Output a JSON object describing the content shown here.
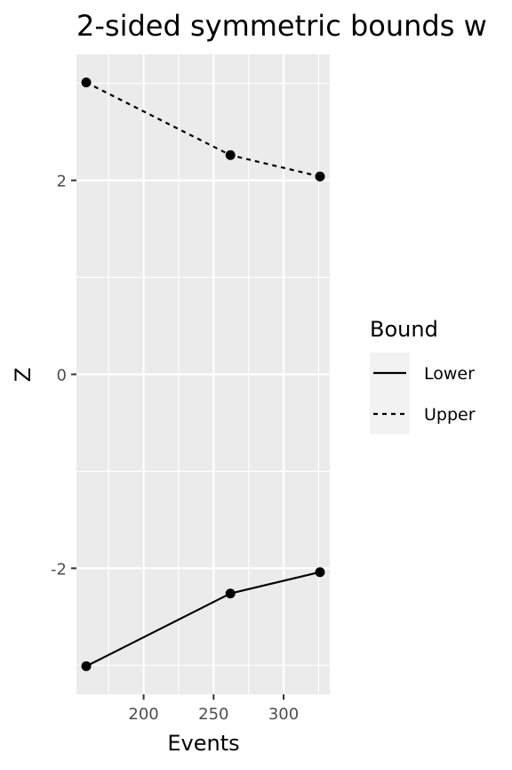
{
  "chart_data": {
    "type": "line",
    "title": "2-sided symmetric bounds w",
    "xlabel": "Events",
    "ylabel": "Z",
    "xlim": [
      152,
      333
    ],
    "ylim": [
      -3.3,
      3.3
    ],
    "x_ticks": [
      {
        "value": 200,
        "label": "200"
      },
      {
        "value": 250,
        "label": "250"
      },
      {
        "value": 300,
        "label": "300"
      }
    ],
    "x_minor_ticks": [
      175,
      225,
      275,
      325
    ],
    "y_ticks": [
      {
        "value": -2,
        "label": "-2"
      },
      {
        "value": 0,
        "label": "0"
      },
      {
        "value": 2,
        "label": "2"
      }
    ],
    "y_minor_ticks": [
      -3,
      -1,
      1,
      3
    ],
    "series": [
      {
        "name": "Lower",
        "linetype": "solid",
        "x": [
          159,
          262,
          326
        ],
        "y": [
          -3.01,
          -2.26,
          -2.04
        ]
      },
      {
        "name": "Upper",
        "linetype": "dashed",
        "x": [
          159,
          262,
          326
        ],
        "y": [
          3.01,
          2.26,
          2.04
        ]
      }
    ],
    "legend": {
      "title": "Bound",
      "position": "right"
    },
    "grid": true,
    "colors": {
      "panel": "#ebebeb",
      "grid": "#ffffff",
      "line": "#000000",
      "tick_text": "#4d4d4d",
      "legend_key": "#f2f2f2"
    }
  }
}
